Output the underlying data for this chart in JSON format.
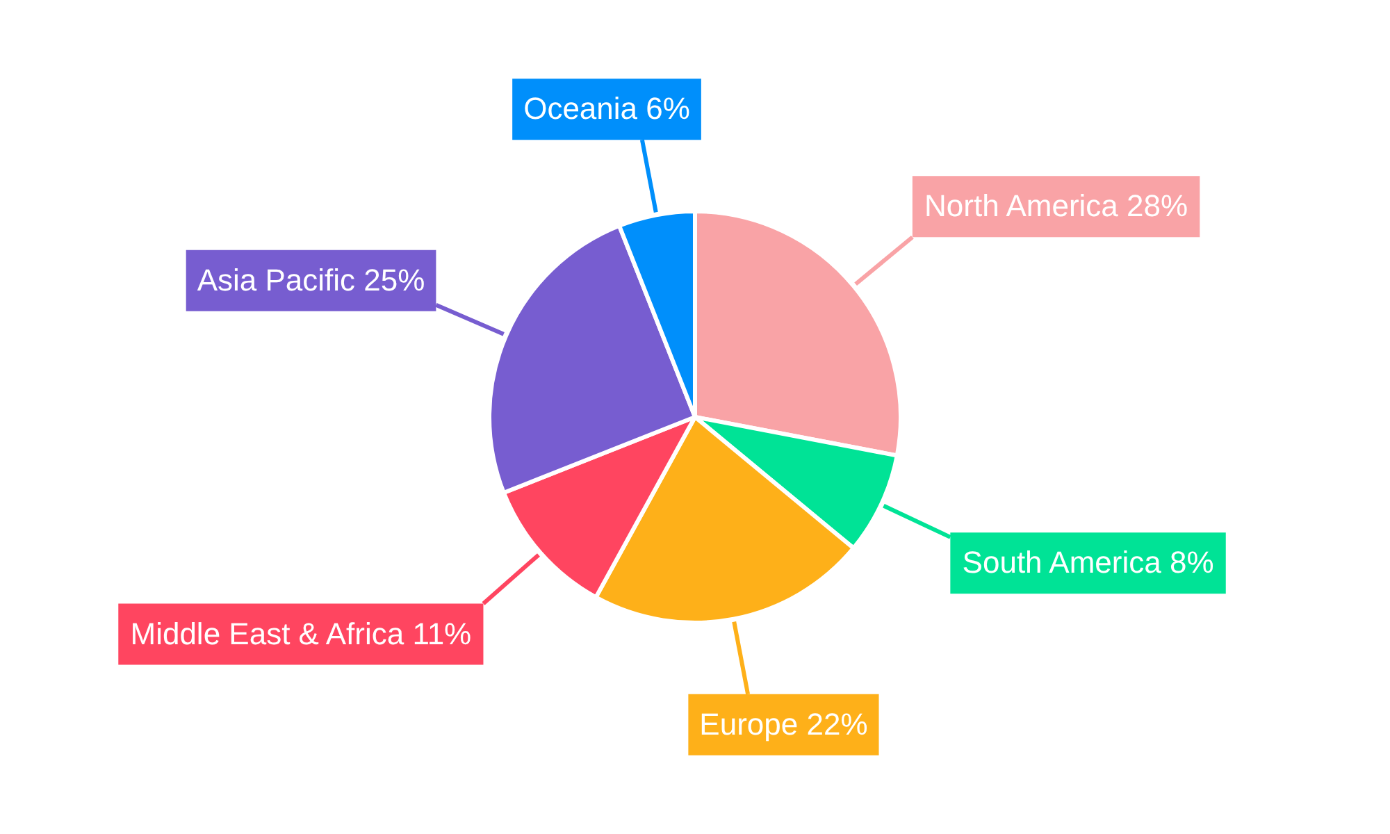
{
  "chart_data": {
    "type": "pie",
    "categories": [
      "North America",
      "South America",
      "Europe",
      "Middle East & Africa",
      "Asia Pacific",
      "Oceania"
    ],
    "values": [
      28,
      8,
      22,
      11,
      25,
      6
    ],
    "value_labels": [
      "28%",
      "8%",
      "22%",
      "11%",
      "25%",
      "6%"
    ],
    "colors": [
      "#f9a3a6",
      "#00e396",
      "#feb019",
      "#ff4560",
      "#775dd0",
      "#008ffb"
    ],
    "legend": false
  }
}
